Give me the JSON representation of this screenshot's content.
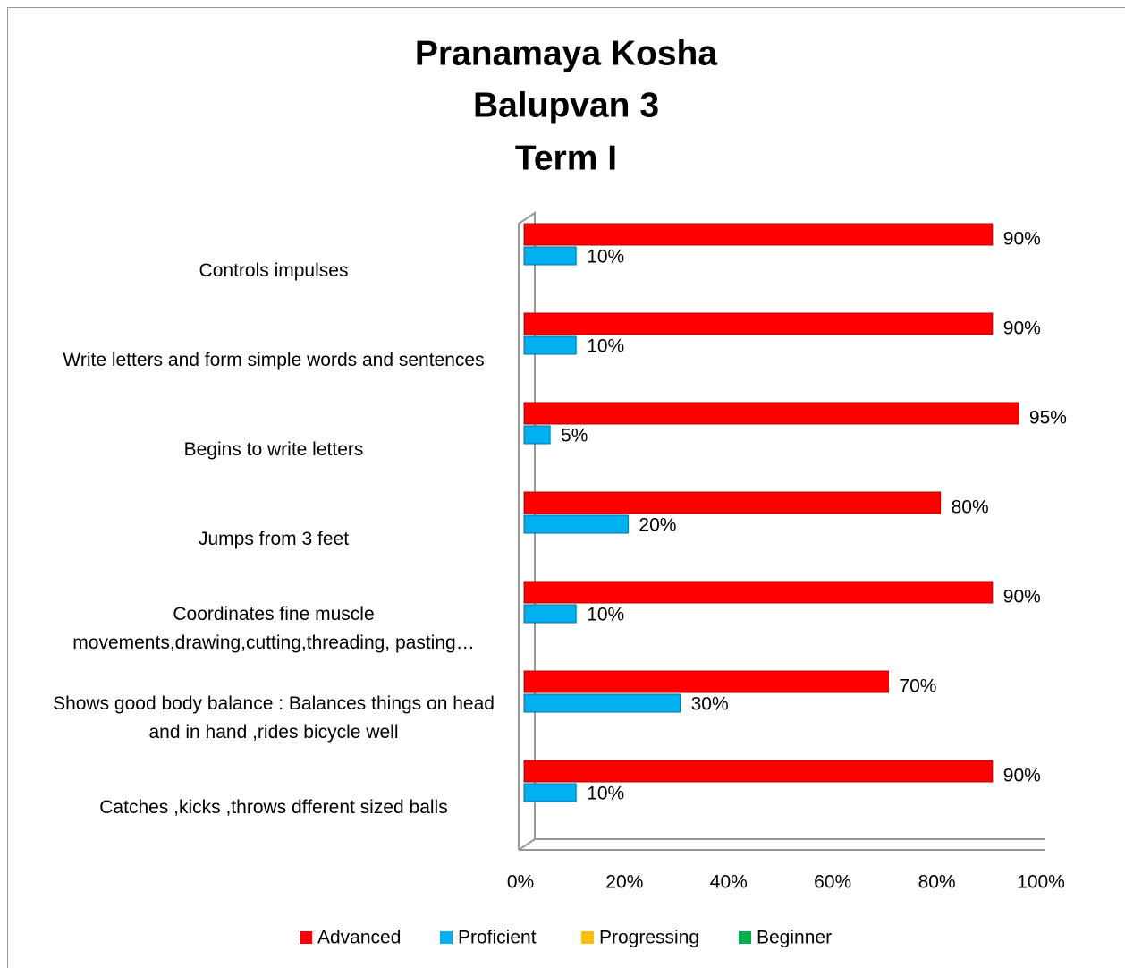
{
  "chart_data": {
    "type": "bar",
    "orientation": "horizontal",
    "title": [
      "Pranamaya Kosha",
      "Balupvan 3",
      "Term I"
    ],
    "categories": [
      "Controls impulses",
      "Write letters and form simple words and sentences",
      "Begins to write letters",
      "Jumps from 3 feet",
      "Coordinates fine muscle movements,drawing,cutting,threading, pasting…",
      "Shows good body balance : Balances things on head and in hand ,rides bicycle well",
      "Catches ,kicks ,throws  dfferent sized balls"
    ],
    "series": [
      {
        "name": "Advanced",
        "color": "#ff0000",
        "values": [
          90,
          90,
          95,
          80,
          90,
          70,
          90
        ],
        "value_labels": [
          "90%",
          "90%",
          "95%",
          "80%",
          "90%",
          "70%",
          "90%"
        ]
      },
      {
        "name": "Proficient",
        "color": "#00b0f0",
        "values": [
          10,
          10,
          5,
          20,
          10,
          30,
          10
        ],
        "value_labels": [
          "10%",
          "10%",
          "5%",
          "20%",
          "10%",
          "30%",
          "10%"
        ]
      },
      {
        "name": "Progressing",
        "color": "#ffc000",
        "values": [
          0,
          0,
          0,
          0,
          0,
          0,
          0
        ]
      },
      {
        "name": "Beginner",
        "color": "#00b050",
        "values": [
          0,
          0,
          0,
          0,
          0,
          0,
          0
        ]
      }
    ],
    "xlim": [
      0,
      100
    ],
    "xticks": [
      {
        "value": 0,
        "label": "0%"
      },
      {
        "value": 20,
        "label": "20%"
      },
      {
        "value": 40,
        "label": "40%"
      },
      {
        "value": 60,
        "label": "60%"
      },
      {
        "value": 80,
        "label": "80%"
      },
      {
        "value": 100,
        "label": "100%"
      }
    ],
    "legend": "bottom"
  }
}
